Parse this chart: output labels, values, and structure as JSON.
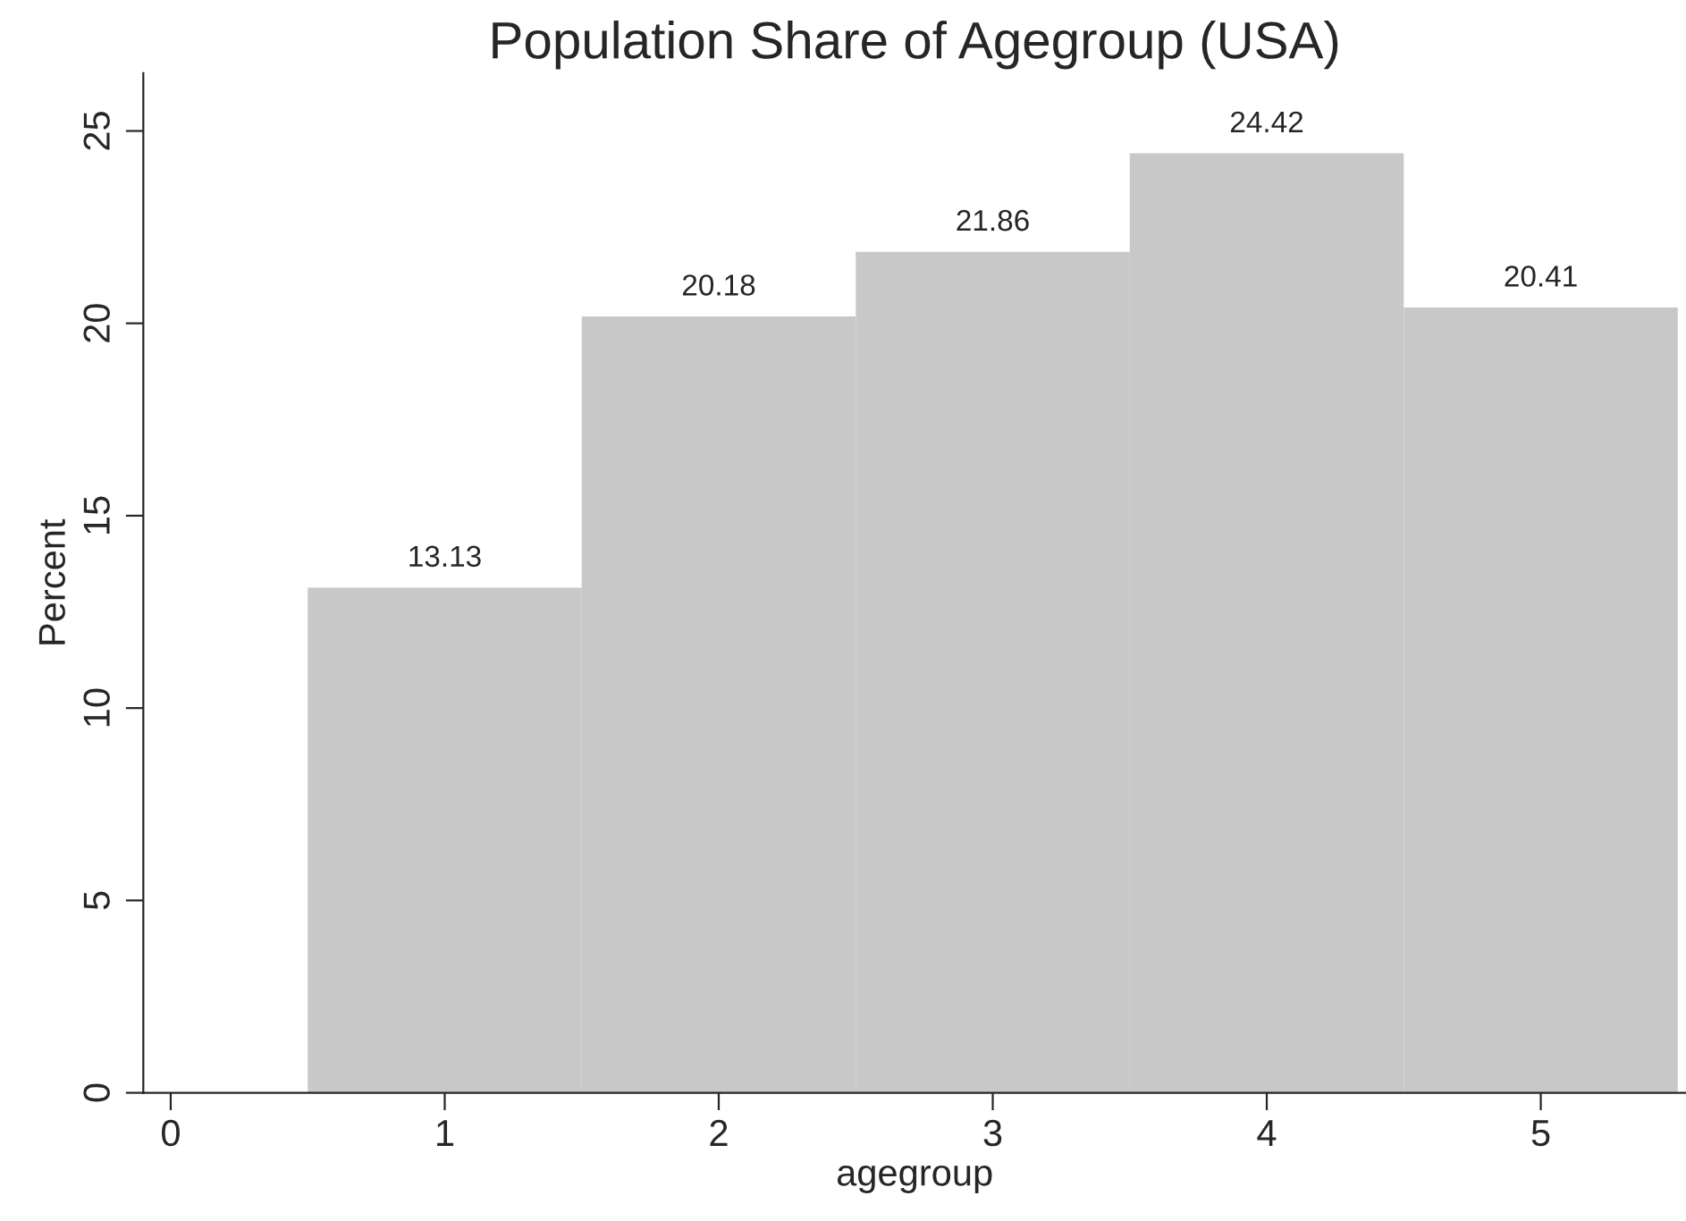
{
  "chart_data": {
    "type": "histogram",
    "title": "Population Share of Agegroup (USA)",
    "xlabel": "agegroup",
    "ylabel": "Percent",
    "bins": [
      0.5,
      1.5,
      2.5,
      3.5,
      4.5,
      5.5
    ],
    "values": [
      13.13,
      20.18,
      21.86,
      24.42,
      20.41
    ],
    "color": "#c8c8c8",
    "xlim": [
      -0.1,
      5.53
    ],
    "xticks": [
      0,
      1,
      2,
      3,
      4,
      5
    ],
    "ylim": [
      0,
      26.5
    ],
    "yticks": [
      0,
      5,
      10,
      15,
      20,
      25
    ],
    "data_labels": true,
    "grid": false,
    "legend": false
  }
}
